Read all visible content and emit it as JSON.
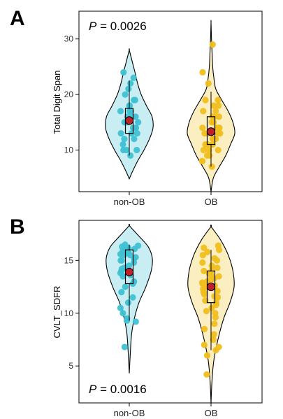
{
  "panels": [
    {
      "letter": "A",
      "p_value_label": "P",
      "p_value_text": " = 0.0026",
      "chart_data": {
        "type": "violin",
        "categories": [
          "non-OB",
          "OB"
        ],
        "ylabel": "Total Digit Span",
        "xlabel": "",
        "ylim": [
          2.5,
          35
        ],
        "yticks": [
          10,
          20,
          30
        ],
        "grid": false,
        "colors": {
          "non-OB": "#3fc1d3",
          "OB": "#f0be1c"
        },
        "violin_fill": {
          "non-OB": "#c8eef4",
          "OB": "#fbeec1"
        },
        "series": [
          {
            "name": "non-OB",
            "median": 15.5,
            "q1": 13.0,
            "q3": 17.5,
            "whisker_low": 9.0,
            "whisker_high": 22.5,
            "mean": 15.3,
            "density": [
              [
                4.8,
                0.0
              ],
              [
                6,
                0.12
              ],
              [
                8,
                0.35
              ],
              [
                10,
                0.62
              ],
              [
                12,
                0.85
              ],
              [
                14,
                1.0
              ],
              [
                16,
                0.96
              ],
              [
                18,
                0.72
              ],
              [
                20,
                0.5
              ],
              [
                22,
                0.35
              ],
              [
                24,
                0.24
              ],
              [
                26,
                0.12
              ],
              [
                28,
                0.0
              ]
            ],
            "points": [
              24,
              23,
              22,
              21,
              20,
              19,
              19,
              18,
              18,
              17,
              17,
              17,
              16,
              16,
              16,
              15,
              15,
              15,
              15,
              14,
              14,
              14,
              13,
              13,
              13,
              12,
              12,
              11,
              10,
              10,
              10,
              9
            ]
          },
          {
            "name": "OB",
            "median": 13.0,
            "q1": 11.0,
            "q3": 16.0,
            "whisker_low": 7.0,
            "whisker_high": 20.5,
            "mean": 13.3,
            "density": [
              [
                2.5,
                0.0
              ],
              [
                5,
                0.1
              ],
              [
                7,
                0.35
              ],
              [
                9,
                0.62
              ],
              [
                11,
                0.82
              ],
              [
                13,
                1.0
              ],
              [
                15,
                0.92
              ],
              [
                17,
                0.72
              ],
              [
                19,
                0.45
              ],
              [
                21,
                0.2
              ],
              [
                23,
                0.12
              ],
              [
                25,
                0.07
              ],
              [
                28,
                0.04
              ],
              [
                30,
                0.02
              ],
              [
                33,
                0.0
              ]
            ],
            "points": [
              29,
              24,
              22,
              19,
              19,
              18,
              18,
              17,
              17,
              16,
              16,
              16,
              15,
              15,
              15,
              14,
              14,
              14,
              14,
              13,
              13,
              13,
              13,
              12,
              12,
              12,
              12,
              11,
              11,
              11,
              10,
              10,
              10,
              9,
              9,
              8,
              8,
              7
            ]
          }
        ]
      }
    },
    {
      "letter": "B",
      "p_value_label": "P",
      "p_value_text": " = 0.0016",
      "chart_data": {
        "type": "violin",
        "categories": [
          "non-OB",
          "OB"
        ],
        "ylabel": "CVLT_SDFR",
        "xlabel": "",
        "ylim": [
          1.5,
          18.8
        ],
        "yticks": [
          5,
          10,
          15
        ],
        "grid": false,
        "colors": {
          "non-OB": "#3fc1d3",
          "OB": "#f0be1c"
        },
        "violin_fill": {
          "non-OB": "#c8eef4",
          "OB": "#fbeec1"
        },
        "series": [
          {
            "name": "non-OB",
            "median": 14.0,
            "q1": 12.8,
            "q3": 16.0,
            "whisker_low": 9.3,
            "whisker_high": 16.5,
            "mean": 13.9,
            "density": [
              [
                4.3,
                0.0
              ],
              [
                6,
                0.04
              ],
              [
                8,
                0.1
              ],
              [
                9.5,
                0.22
              ],
              [
                11,
                0.42
              ],
              [
                12.5,
                0.72
              ],
              [
                14,
                0.95
              ],
              [
                15.2,
                1.0
              ],
              [
                16.3,
                0.82
              ],
              [
                17.3,
                0.42
              ],
              [
                18.3,
                0.0
              ]
            ],
            "points": [
              16.5,
              16.4,
              16.3,
              16.2,
              16.1,
              16,
              16,
              15.9,
              15.8,
              15.7,
              15.6,
              15.5,
              15.5,
              15.3,
              15.2,
              15,
              15,
              14.8,
              14.5,
              14.3,
              14.2,
              14,
              13.8,
              13.6,
              13.5,
              13,
              12.8,
              12.5,
              12,
              11.5,
              11,
              10.5,
              10,
              9.5,
              9.2,
              9.3,
              6.8
            ]
          },
          {
            "name": "OB",
            "median": 12.7,
            "q1": 11.0,
            "q3": 14.0,
            "whisker_low": 6.5,
            "whisker_high": 16.0,
            "mean": 12.5,
            "density": [
              [
                1.5,
                0.0
              ],
              [
                3.5,
                0.04
              ],
              [
                5.5,
                0.12
              ],
              [
                7.5,
                0.3
              ],
              [
                9.5,
                0.55
              ],
              [
                11,
                0.82
              ],
              [
                12.5,
                1.0
              ],
              [
                14,
                0.95
              ],
              [
                15.5,
                0.75
              ],
              [
                17,
                0.4
              ],
              [
                18.2,
                0.0
              ]
            ],
            "points": [
              16.4,
              16.2,
              16,
              15.8,
              15.5,
              15.2,
              15,
              14.8,
              14.5,
              14.3,
              14.1,
              14,
              13.8,
              13.6,
              13.5,
              13.3,
              13.2,
              13,
              12.9,
              12.8,
              12.6,
              12.5,
              12.3,
              12.1,
              12,
              11.8,
              11.6,
              11.5,
              11.2,
              11,
              10.8,
              10.5,
              10.2,
              10,
              9.6,
              9,
              8.5,
              8,
              7.5,
              7,
              6.8,
              6.5,
              6,
              4.2
            ]
          }
        ]
      }
    }
  ]
}
